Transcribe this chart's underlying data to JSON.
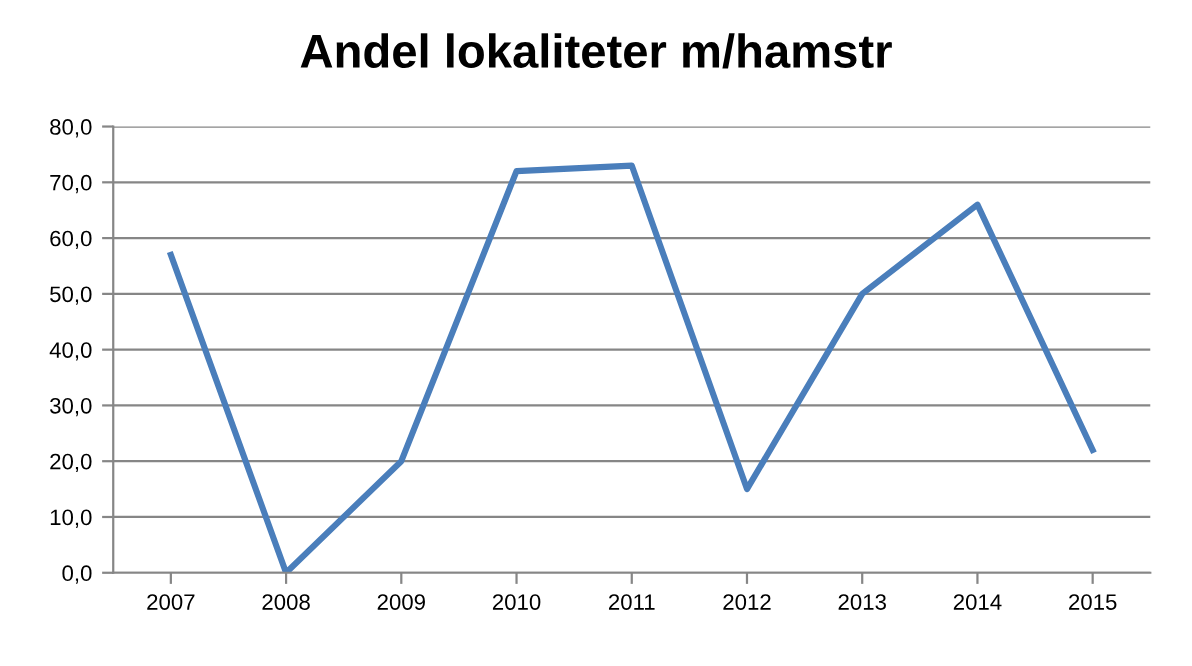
{
  "chart_data": {
    "type": "line",
    "title": "Andel lokaliteter m/hamstr",
    "categories": [
      "2007",
      "2008",
      "2009",
      "2010",
      "2011",
      "2012",
      "2013",
      "2014",
      "2015"
    ],
    "series": [
      {
        "color": "#4a7ebb",
        "values": [
          57,
          0,
          20,
          72,
          73,
          15,
          50,
          66,
          22
        ]
      }
    ],
    "ylim": [
      0,
      80
    ],
    "yticks": [
      {
        "value": 0,
        "label": "0,0"
      },
      {
        "value": 10,
        "label": "10,0"
      },
      {
        "value": 20,
        "label": "20,0"
      },
      {
        "value": 30,
        "label": "30,0"
      },
      {
        "value": 40,
        "label": "40,0"
      },
      {
        "value": 50,
        "label": "50,0"
      },
      {
        "value": 60,
        "label": "60,0"
      },
      {
        "value": 70,
        "label": "70,0"
      },
      {
        "value": 80,
        "label": "80,0"
      }
    ],
    "grid": "y",
    "marker": "none",
    "line_style": "solid"
  }
}
